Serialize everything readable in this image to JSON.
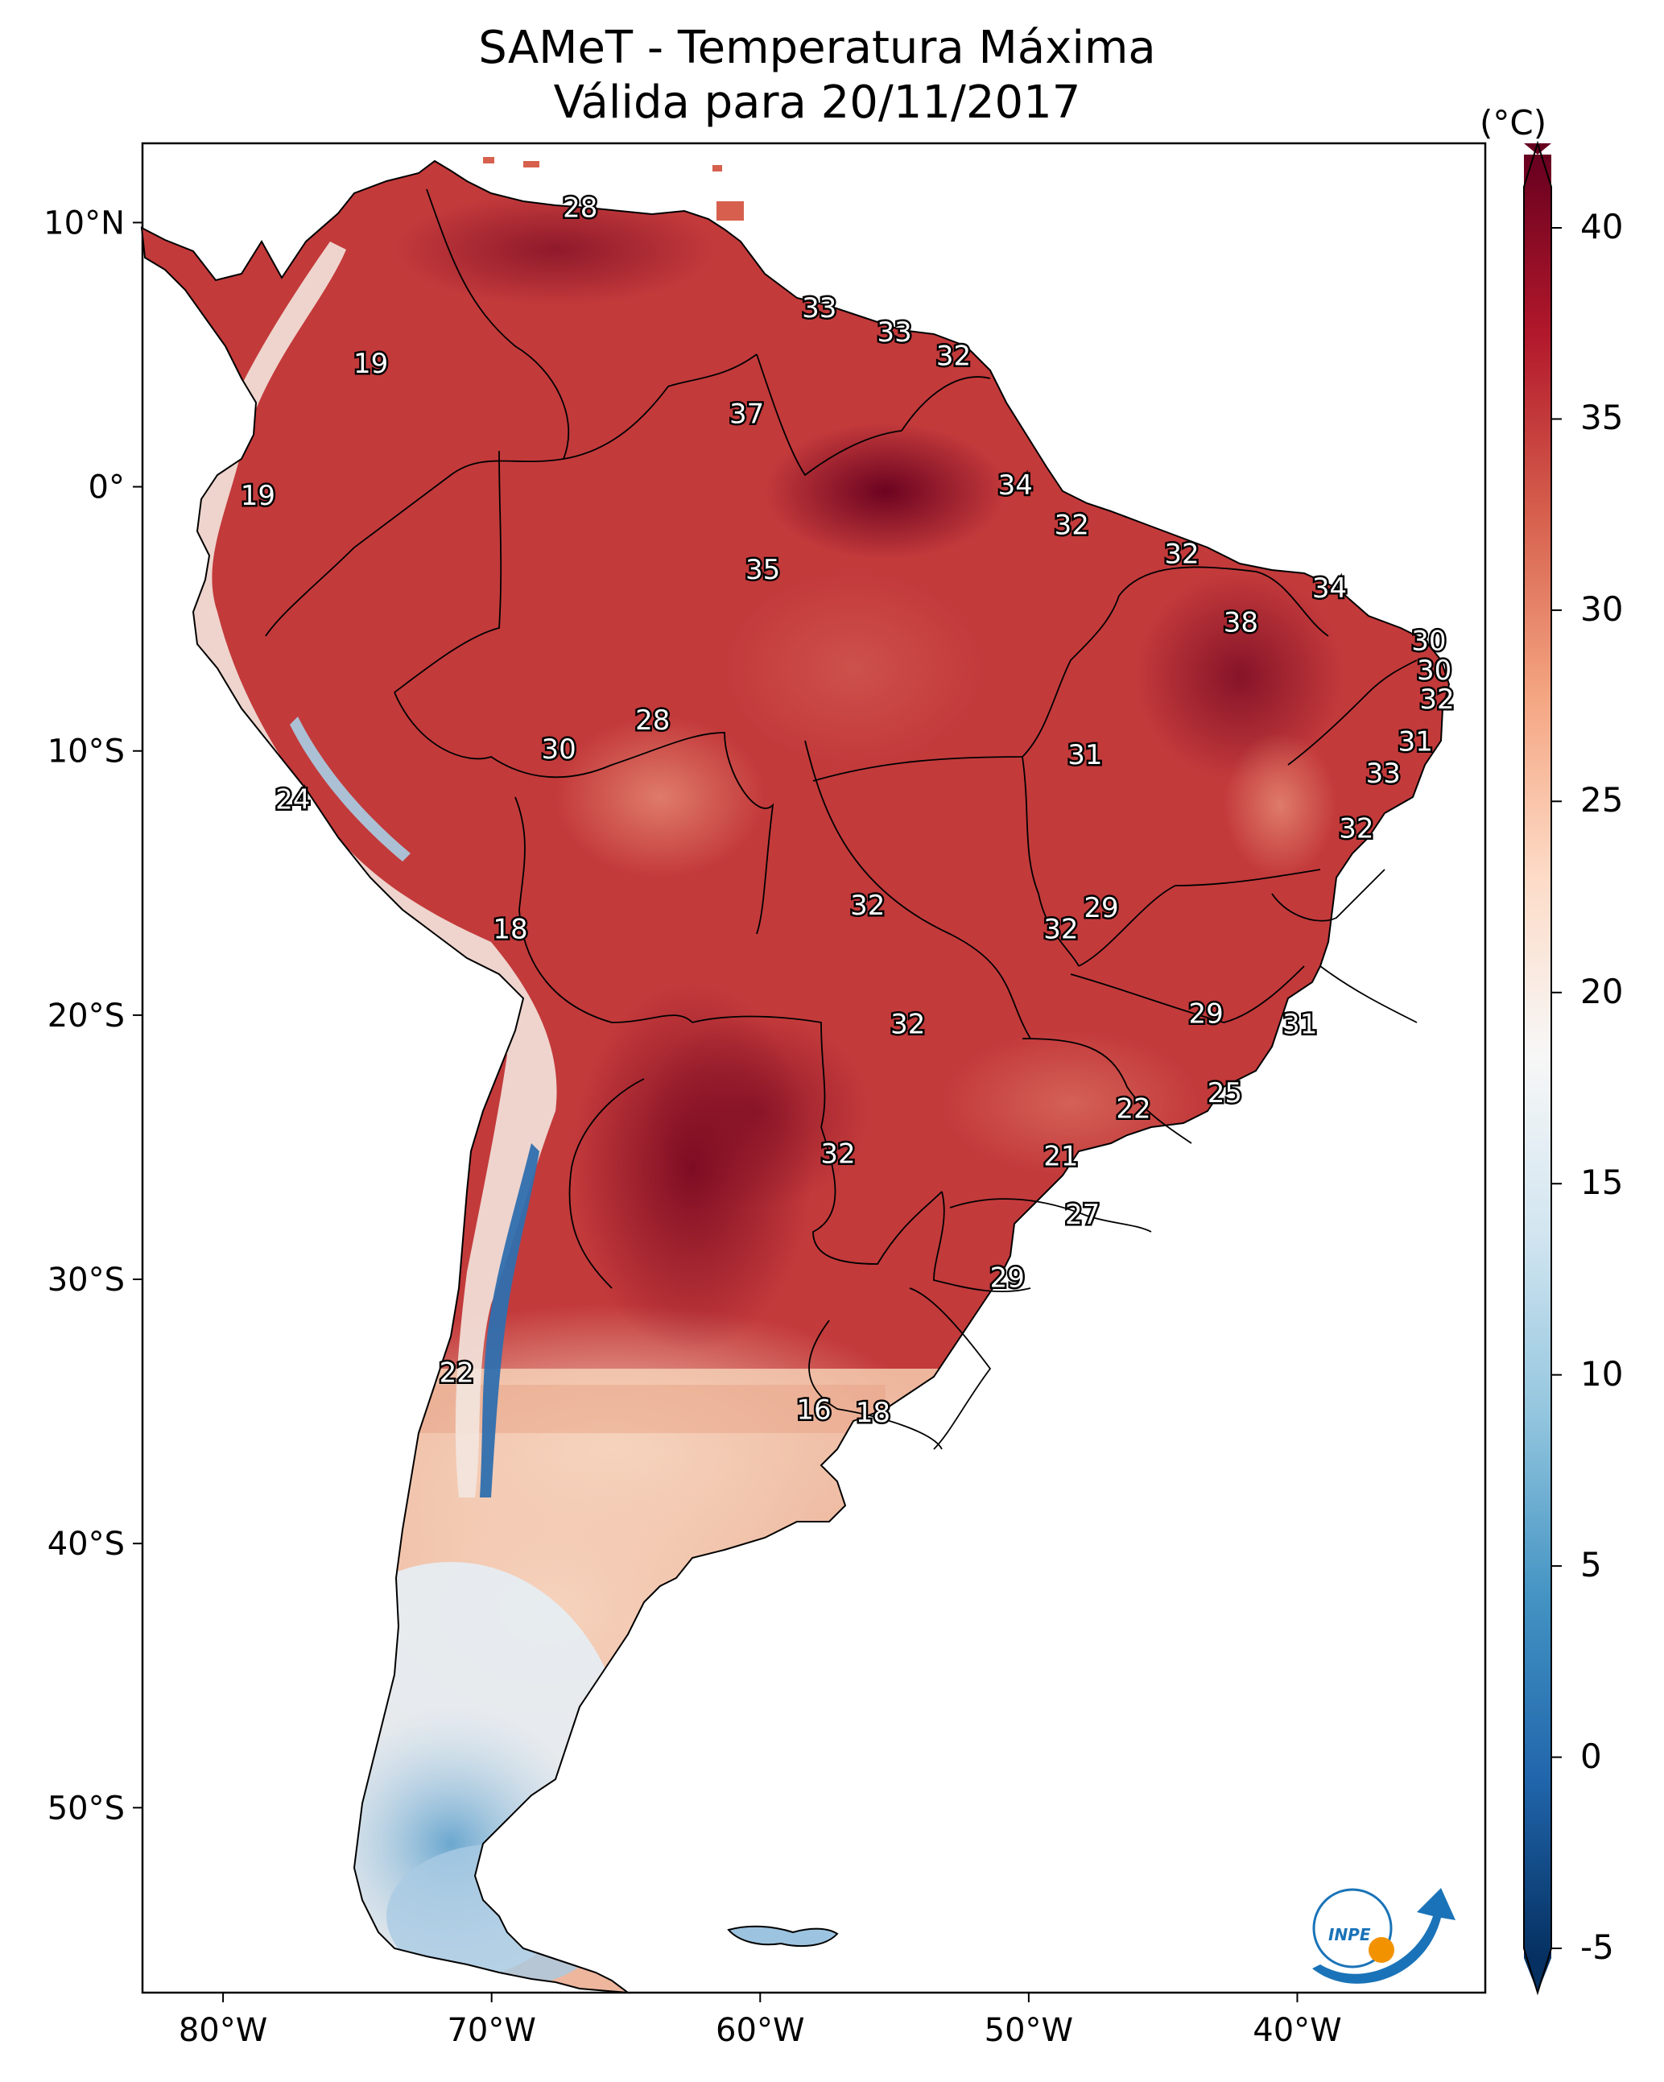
{
  "title": "SAMeT - Temperatura Máxima",
  "subtitle": "Válida para 20/11/2017",
  "colorbar": {
    "unit": "(°C)",
    "ticks": [
      "40",
      "35",
      "30",
      "25",
      "20",
      "15",
      "10",
      "5",
      "0",
      "-5"
    ],
    "tick_values": [
      40,
      35,
      30,
      25,
      20,
      15,
      10,
      5,
      0,
      -5
    ],
    "range": [
      -5,
      40
    ],
    "colors": [
      "#67001f",
      "#b2182b",
      "#d6604d",
      "#f4a582",
      "#fddbc7",
      "#f7f7f7",
      "#d1e5f0",
      "#92c5de",
      "#4393c3",
      "#2166ac",
      "#053061"
    ]
  },
  "axes": {
    "lon_labels": [
      "80°W",
      "70°W",
      "60°W",
      "50°W",
      "40°W"
    ],
    "lat_labels": [
      "10°N",
      "0°",
      "10°S",
      "20°S",
      "30°S",
      "40°S",
      "50°S"
    ]
  },
  "map_data": {
    "variable": "Temperatura Máxima",
    "units": "°C",
    "extent": {
      "lon": [
        -83,
        -33
      ],
      "lat": [
        -57,
        13
      ]
    },
    "point_labels": [
      {
        "value": "28",
        "lon": -66.7,
        "lat": 10.5
      },
      {
        "value": "33",
        "lon": -57.8,
        "lat": 6.7
      },
      {
        "value": "33",
        "lon": -55.0,
        "lat": 5.8
      },
      {
        "value": "32",
        "lon": -52.8,
        "lat": 4.9
      },
      {
        "value": "19",
        "lon": -74.5,
        "lat": 4.6
      },
      {
        "value": "37",
        "lon": -60.5,
        "lat": 2.7
      },
      {
        "value": "34",
        "lon": -50.5,
        "lat": 0.0
      },
      {
        "value": "19",
        "lon": -78.7,
        "lat": -0.4
      },
      {
        "value": "32",
        "lon": -48.4,
        "lat": -1.5
      },
      {
        "value": "32",
        "lon": -44.3,
        "lat": -2.6
      },
      {
        "value": "35",
        "lon": -59.9,
        "lat": -3.2
      },
      {
        "value": "34",
        "lon": -38.8,
        "lat": -3.9
      },
      {
        "value": "38",
        "lon": -42.1,
        "lat": -5.2
      },
      {
        "value": "30",
        "lon": -35.1,
        "lat": -5.9
      },
      {
        "value": "30",
        "lon": -34.9,
        "lat": -7.0
      },
      {
        "value": "32",
        "lon": -34.8,
        "lat": -8.1
      },
      {
        "value": "28",
        "lon": -64.0,
        "lat": -8.9
      },
      {
        "value": "31",
        "lon": -35.6,
        "lat": -9.7
      },
      {
        "value": "30",
        "lon": -67.5,
        "lat": -10.0
      },
      {
        "value": "31",
        "lon": -47.9,
        "lat": -10.2
      },
      {
        "value": "33",
        "lon": -36.8,
        "lat": -10.9
      },
      {
        "value": "24",
        "lon": -77.4,
        "lat": -11.9
      },
      {
        "value": "32",
        "lon": -37.8,
        "lat": -13.0
      },
      {
        "value": "32",
        "lon": -56.0,
        "lat": -15.9
      },
      {
        "value": "29",
        "lon": -47.3,
        "lat": -16.0
      },
      {
        "value": "32",
        "lon": -48.8,
        "lat": -16.8
      },
      {
        "value": "18",
        "lon": -69.3,
        "lat": -16.8
      },
      {
        "value": "29",
        "lon": -43.4,
        "lat": -20.0
      },
      {
        "value": "31",
        "lon": -39.9,
        "lat": -20.4
      },
      {
        "value": "32",
        "lon": -54.5,
        "lat": -20.4
      },
      {
        "value": "25",
        "lon": -42.7,
        "lat": -23.0
      },
      {
        "value": "22",
        "lon": -46.1,
        "lat": -23.6
      },
      {
        "value": "32",
        "lon": -57.1,
        "lat": -25.3
      },
      {
        "value": "21",
        "lon": -48.8,
        "lat": -25.4
      },
      {
        "value": "27",
        "lon": -48.0,
        "lat": -27.6
      },
      {
        "value": "29",
        "lon": -50.8,
        "lat": -30.0
      },
      {
        "value": "22",
        "lon": -71.3,
        "lat": -33.6
      },
      {
        "value": "16",
        "lon": -58.0,
        "lat": -35.0
      },
      {
        "value": "18",
        "lon": -55.8,
        "lat": -35.1
      }
    ]
  },
  "logo": {
    "text": "INPE",
    "accent_color": "#1a73b8",
    "dot_color": "#f39200"
  }
}
